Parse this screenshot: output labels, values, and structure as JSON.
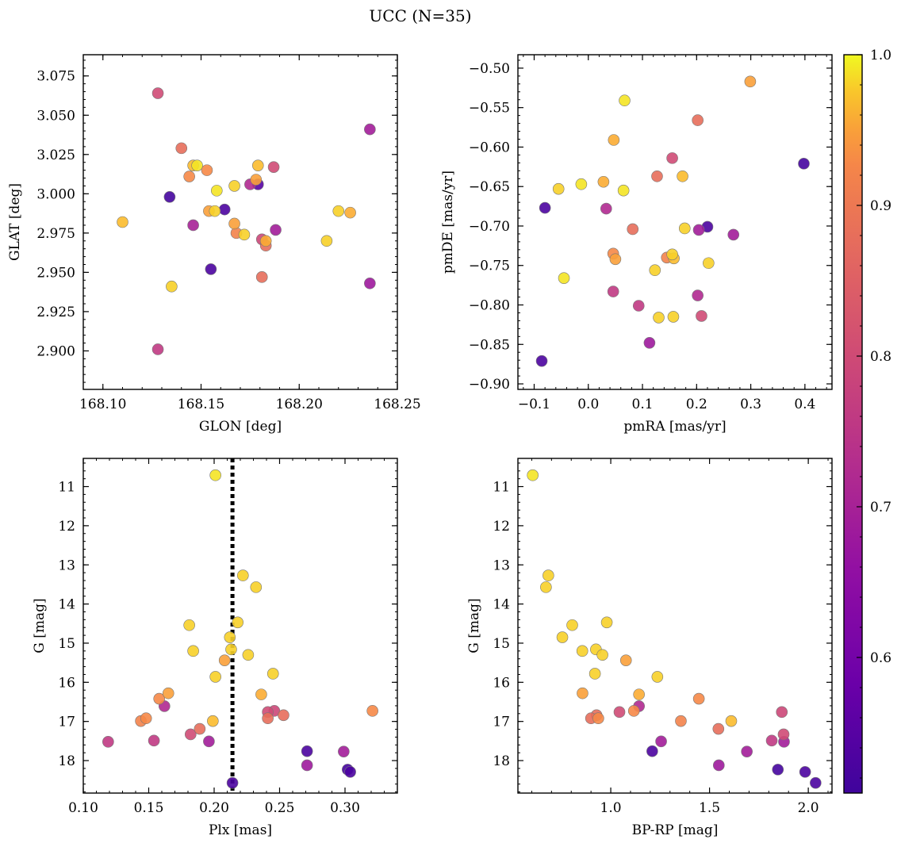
{
  "figure": {
    "title": "UCC (N=35)",
    "colorbar": {
      "cmap": "plasma",
      "range": [
        0.51,
        1.0
      ],
      "ticks": [
        0.6,
        0.7,
        0.8,
        0.9,
        1.0
      ],
      "tick_labels": [
        "0.6",
        "0.7",
        "0.8",
        "0.9",
        "1.0"
      ]
    }
  },
  "chart_data": [
    {
      "type": "scatter",
      "xlabel": "GLON [deg]",
      "ylabel": "GLAT [deg]",
      "xlim": [
        168.09,
        168.25
      ],
      "ylim": [
        2.8755,
        3.0885
      ],
      "xticks": [
        168.1,
        168.15,
        168.2,
        168.25
      ],
      "xtick_labels": [
        "168.10",
        "168.15",
        "168.20",
        "168.25"
      ],
      "yticks": [
        2.9,
        2.925,
        2.95,
        2.975,
        3.0,
        3.025,
        3.05,
        3.075
      ],
      "ytick_labels": [
        "2.900",
        "2.925",
        "2.950",
        "2.975",
        "3.000",
        "3.025",
        "3.050",
        "3.075"
      ],
      "points": [
        {
          "x": 168.128,
          "y": 3.064,
          "c": 0.8
        },
        {
          "x": 168.128,
          "y": 2.901,
          "c": 0.76
        },
        {
          "x": 168.134,
          "y": 2.998,
          "c": 0.52
        },
        {
          "x": 168.135,
          "y": 2.941,
          "c": 0.98
        },
        {
          "x": 168.11,
          "y": 2.982,
          "c": 0.97
        },
        {
          "x": 168.14,
          "y": 3.029,
          "c": 0.88
        },
        {
          "x": 168.144,
          "y": 3.011,
          "c": 0.93
        },
        {
          "x": 168.146,
          "y": 3.018,
          "c": 0.97
        },
        {
          "x": 168.148,
          "y": 3.018,
          "c": 0.99
        },
        {
          "x": 168.146,
          "y": 2.98,
          "c": 0.7
        },
        {
          "x": 168.153,
          "y": 3.015,
          "c": 0.93
        },
        {
          "x": 168.154,
          "y": 2.989,
          "c": 0.95
        },
        {
          "x": 168.157,
          "y": 2.989,
          "c": 0.98
        },
        {
          "x": 168.158,
          "y": 3.002,
          "c": 0.99
        },
        {
          "x": 168.155,
          "y": 2.952,
          "c": 0.53
        },
        {
          "x": 168.162,
          "y": 2.99,
          "c": 0.53
        },
        {
          "x": 168.167,
          "y": 3.005,
          "c": 0.98
        },
        {
          "x": 168.167,
          "y": 2.981,
          "c": 0.95
        },
        {
          "x": 168.168,
          "y": 2.975,
          "c": 0.92
        },
        {
          "x": 168.172,
          "y": 2.974,
          "c": 0.98
        },
        {
          "x": 168.175,
          "y": 3.006,
          "c": 0.72
        },
        {
          "x": 168.178,
          "y": 3.009,
          "c": 0.95
        },
        {
          "x": 168.179,
          "y": 3.018,
          "c": 0.97
        },
        {
          "x": 168.179,
          "y": 3.006,
          "c": 0.55
        },
        {
          "x": 168.181,
          "y": 2.971,
          "c": 0.79
        },
        {
          "x": 168.183,
          "y": 2.97,
          "c": 0.96
        },
        {
          "x": 168.183,
          "y": 2.967,
          "c": 0.88
        },
        {
          "x": 168.181,
          "y": 2.947,
          "c": 0.88
        },
        {
          "x": 168.187,
          "y": 3.017,
          "c": 0.8
        },
        {
          "x": 168.188,
          "y": 2.977,
          "c": 0.69
        },
        {
          "x": 168.214,
          "y": 2.97,
          "c": 0.98
        },
        {
          "x": 168.22,
          "y": 2.989,
          "c": 0.98
        },
        {
          "x": 168.226,
          "y": 2.988,
          "c": 0.96
        },
        {
          "x": 168.236,
          "y": 3.041,
          "c": 0.69
        },
        {
          "x": 168.236,
          "y": 2.943,
          "c": 0.68
        }
      ]
    },
    {
      "type": "scatter",
      "xlabel": "pmRA [mas/yr]",
      "ylabel": "pmDE [mas/yr]",
      "xlim": [
        -0.13,
        0.45
      ],
      "ylim": [
        -0.907,
        -0.483
      ],
      "xticks": [
        -0.1,
        0.0,
        0.1,
        0.2,
        0.3,
        0.4
      ],
      "xtick_labels": [
        "−0.1",
        "0.0",
        "0.1",
        "0.2",
        "0.3",
        "0.4"
      ],
      "yticks": [
        -0.9,
        -0.85,
        -0.8,
        -0.75,
        -0.7,
        -0.65,
        -0.6,
        -0.55,
        -0.5
      ],
      "ytick_labels": [
        "−0.90",
        "−0.85",
        "−0.80",
        "−0.75",
        "−0.70",
        "−0.65",
        "−0.60",
        "−0.55",
        "−0.50"
      ],
      "points": [
        {
          "x": 0.299,
          "y": -0.517,
          "c": 0.95
        },
        {
          "x": 0.067,
          "y": -0.541,
          "c": 0.99
        },
        {
          "x": 0.202,
          "y": -0.566,
          "c": 0.88
        },
        {
          "x": 0.047,
          "y": -0.591,
          "c": 0.96
        },
        {
          "x": 0.155,
          "y": -0.614,
          "c": 0.8
        },
        {
          "x": 0.398,
          "y": -0.621,
          "c": 0.52
        },
        {
          "x": 0.127,
          "y": -0.637,
          "c": 0.88
        },
        {
          "x": 0.174,
          "y": -0.637,
          "c": 0.97
        },
        {
          "x": 0.028,
          "y": -0.644,
          "c": 0.96
        },
        {
          "x": -0.013,
          "y": -0.647,
          "c": 0.99
        },
        {
          "x": -0.055,
          "y": -0.653,
          "c": 0.98
        },
        {
          "x": 0.065,
          "y": -0.655,
          "c": 0.99
        },
        {
          "x": -0.08,
          "y": -0.677,
          "c": 0.53
        },
        {
          "x": 0.033,
          "y": -0.678,
          "c": 0.72
        },
        {
          "x": 0.22,
          "y": -0.701,
          "c": 0.53
        },
        {
          "x": 0.082,
          "y": -0.704,
          "c": 0.88
        },
        {
          "x": 0.178,
          "y": -0.703,
          "c": 0.98
        },
        {
          "x": 0.204,
          "y": -0.705,
          "c": 0.69
        },
        {
          "x": 0.268,
          "y": -0.711,
          "c": 0.69
        },
        {
          "x": 0.046,
          "y": -0.735,
          "c": 0.93
        },
        {
          "x": 0.05,
          "y": -0.742,
          "c": 0.95
        },
        {
          "x": 0.145,
          "y": -0.74,
          "c": 0.92
        },
        {
          "x": 0.155,
          "y": -0.736,
          "c": 0.98
        },
        {
          "x": 0.158,
          "y": -0.741,
          "c": 0.97
        },
        {
          "x": 0.222,
          "y": -0.747,
          "c": 0.98
        },
        {
          "x": 0.123,
          "y": -0.756,
          "c": 0.98
        },
        {
          "x": -0.045,
          "y": -0.766,
          "c": 0.99
        },
        {
          "x": 0.046,
          "y": -0.783,
          "c": 0.76
        },
        {
          "x": 0.202,
          "y": -0.788,
          "c": 0.72
        },
        {
          "x": 0.093,
          "y": -0.801,
          "c": 0.76
        },
        {
          "x": 0.209,
          "y": -0.814,
          "c": 0.8
        },
        {
          "x": 0.157,
          "y": -0.815,
          "c": 0.98
        },
        {
          "x": 0.13,
          "y": -0.816,
          "c": 0.98
        },
        {
          "x": 0.113,
          "y": -0.848,
          "c": 0.68
        },
        {
          "x": -0.086,
          "y": -0.871,
          "c": 0.53
        }
      ]
    },
    {
      "type": "scatter",
      "xlabel": "Plx [mas]",
      "ylabel": "G [mag]",
      "xlim": [
        0.1,
        0.34
      ],
      "ylim": [
        18.83,
        10.28
      ],
      "y_inverted": true,
      "vline": 0.214,
      "xticks": [
        0.1,
        0.15,
        0.2,
        0.25,
        0.3
      ],
      "xtick_labels": [
        "0.10",
        "0.15",
        "0.20",
        "0.25",
        "0.30"
      ],
      "yticks": [
        11,
        12,
        13,
        14,
        15,
        16,
        17,
        18
      ],
      "ytick_labels": [
        "11",
        "12",
        "13",
        "14",
        "15",
        "16",
        "17",
        "18"
      ],
      "points": [
        {
          "x": 0.201,
          "y": 10.71,
          "c": 0.99
        },
        {
          "x": 0.222,
          "y": 13.27,
          "c": 0.98
        },
        {
          "x": 0.232,
          "y": 13.57,
          "c": 0.98
        },
        {
          "x": 0.218,
          "y": 14.47,
          "c": 0.98
        },
        {
          "x": 0.181,
          "y": 14.54,
          "c": 0.98
        },
        {
          "x": 0.212,
          "y": 14.85,
          "c": 0.98
        },
        {
          "x": 0.213,
          "y": 15.16,
          "c": 0.98
        },
        {
          "x": 0.184,
          "y": 15.2,
          "c": 0.98
        },
        {
          "x": 0.226,
          "y": 15.3,
          "c": 0.98
        },
        {
          "x": 0.208,
          "y": 15.44,
          "c": 0.95
        },
        {
          "x": 0.245,
          "y": 15.78,
          "c": 0.98
        },
        {
          "x": 0.201,
          "y": 15.86,
          "c": 0.98
        },
        {
          "x": 0.236,
          "y": 16.31,
          "c": 0.96
        },
        {
          "x": 0.165,
          "y": 16.28,
          "c": 0.95
        },
        {
          "x": 0.158,
          "y": 16.42,
          "c": 0.93
        },
        {
          "x": 0.162,
          "y": 16.61,
          "c": 0.72
        },
        {
          "x": 0.321,
          "y": 16.73,
          "c": 0.93
        },
        {
          "x": 0.241,
          "y": 16.76,
          "c": 0.8
        },
        {
          "x": 0.246,
          "y": 16.73,
          "c": 0.79
        },
        {
          "x": 0.253,
          "y": 16.84,
          "c": 0.88
        },
        {
          "x": 0.241,
          "y": 16.92,
          "c": 0.88
        },
        {
          "x": 0.148,
          "y": 16.92,
          "c": 0.93
        },
        {
          "x": 0.144,
          "y": 16.99,
          "c": 0.92
        },
        {
          "x": 0.199,
          "y": 16.99,
          "c": 0.97
        },
        {
          "x": 0.189,
          "y": 17.19,
          "c": 0.88
        },
        {
          "x": 0.182,
          "y": 17.33,
          "c": 0.8
        },
        {
          "x": 0.119,
          "y": 17.52,
          "c": 0.76
        },
        {
          "x": 0.154,
          "y": 17.49,
          "c": 0.76
        },
        {
          "x": 0.196,
          "y": 17.51,
          "c": 0.69
        },
        {
          "x": 0.271,
          "y": 17.76,
          "c": 0.53
        },
        {
          "x": 0.299,
          "y": 17.77,
          "c": 0.69
        },
        {
          "x": 0.271,
          "y": 18.12,
          "c": 0.68
        },
        {
          "x": 0.302,
          "y": 18.23,
          "c": 0.52
        },
        {
          "x": 0.304,
          "y": 18.29,
          "c": 0.53
        },
        {
          "x": 0.214,
          "y": 18.57,
          "c": 0.53
        }
      ]
    },
    {
      "type": "scatter",
      "xlabel": "BP-RP [mag]",
      "ylabel": "G [mag]",
      "xlim": [
        0.53,
        2.12
      ],
      "ylim": [
        18.83,
        10.28
      ],
      "y_inverted": true,
      "xticks": [
        1.0,
        1.5,
        2.0
      ],
      "xtick_labels": [
        "1.0",
        "1.5",
        "2.0"
      ],
      "yticks": [
        11,
        12,
        13,
        14,
        15,
        16,
        17,
        18
      ],
      "ytick_labels": [
        "11",
        "12",
        "13",
        "14",
        "15",
        "16",
        "17",
        "18"
      ],
      "points": [
        {
          "x": 0.605,
          "y": 10.71,
          "c": 0.99
        },
        {
          "x": 0.684,
          "y": 13.27,
          "c": 0.98
        },
        {
          "x": 0.672,
          "y": 13.57,
          "c": 0.98
        },
        {
          "x": 0.98,
          "y": 14.47,
          "c": 0.98
        },
        {
          "x": 0.805,
          "y": 14.54,
          "c": 0.98
        },
        {
          "x": 0.755,
          "y": 14.85,
          "c": 0.98
        },
        {
          "x": 0.925,
          "y": 15.16,
          "c": 0.98
        },
        {
          "x": 0.856,
          "y": 15.2,
          "c": 0.98
        },
        {
          "x": 0.958,
          "y": 15.3,
          "c": 0.98
        },
        {
          "x": 1.077,
          "y": 15.44,
          "c": 0.95
        },
        {
          "x": 0.92,
          "y": 15.78,
          "c": 0.98
        },
        {
          "x": 1.236,
          "y": 15.86,
          "c": 0.98
        },
        {
          "x": 1.143,
          "y": 16.31,
          "c": 0.96
        },
        {
          "x": 0.857,
          "y": 16.28,
          "c": 0.95
        },
        {
          "x": 1.446,
          "y": 16.42,
          "c": 0.93
        },
        {
          "x": 1.143,
          "y": 16.61,
          "c": 0.72
        },
        {
          "x": 1.117,
          "y": 16.73,
          "c": 0.93
        },
        {
          "x": 1.044,
          "y": 16.76,
          "c": 0.8
        },
        {
          "x": 1.866,
          "y": 16.76,
          "c": 0.79
        },
        {
          "x": 0.928,
          "y": 16.84,
          "c": 0.88
        },
        {
          "x": 0.9,
          "y": 16.92,
          "c": 0.88
        },
        {
          "x": 0.937,
          "y": 16.92,
          "c": 0.93
        },
        {
          "x": 1.355,
          "y": 16.99,
          "c": 0.92
        },
        {
          "x": 1.61,
          "y": 16.99,
          "c": 0.97
        },
        {
          "x": 1.545,
          "y": 17.19,
          "c": 0.88
        },
        {
          "x": 1.875,
          "y": 17.33,
          "c": 0.8
        },
        {
          "x": 1.815,
          "y": 17.49,
          "c": 0.76
        },
        {
          "x": 1.255,
          "y": 17.51,
          "c": 0.69
        },
        {
          "x": 1.877,
          "y": 17.52,
          "c": 0.69
        },
        {
          "x": 1.21,
          "y": 17.76,
          "c": 0.53
        },
        {
          "x": 1.689,
          "y": 17.77,
          "c": 0.69
        },
        {
          "x": 1.547,
          "y": 18.12,
          "c": 0.68
        },
        {
          "x": 1.846,
          "y": 18.23,
          "c": 0.52
        },
        {
          "x": 1.984,
          "y": 18.29,
          "c": 0.53
        },
        {
          "x": 2.037,
          "y": 18.57,
          "c": 0.53
        }
      ]
    }
  ]
}
